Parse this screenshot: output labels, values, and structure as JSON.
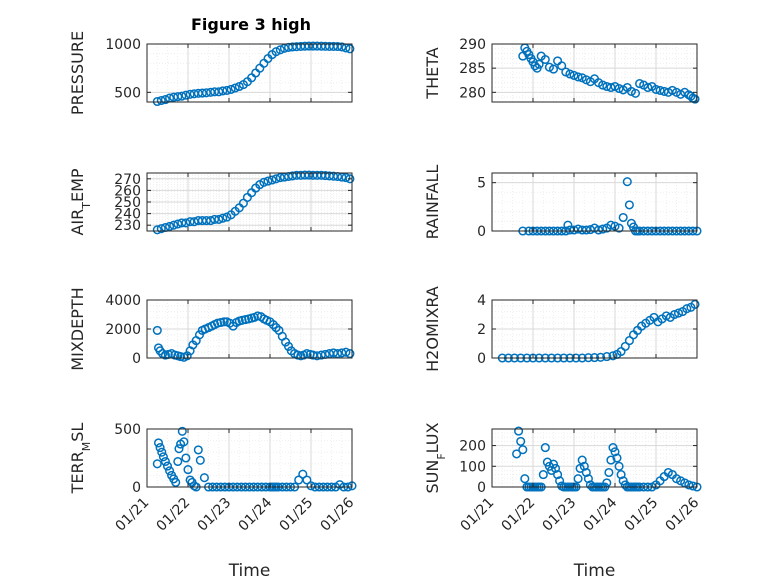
{
  "figure_title": "Figure 3 high",
  "colors": {
    "marker": "#0072BD",
    "axis": "#262626",
    "grid_major": "#d9d9d9",
    "grid_minor": "#ececec"
  },
  "chart_data": [
    {
      "type": "scatter",
      "title": "Figure 3 high",
      "ylabel": "PRESSURE",
      "xlabel": "",
      "xlim": [
        0,
        5
      ],
      "ylim": [
        400,
        1000
      ],
      "yticks": [
        500,
        1000
      ],
      "xticks": [
        "01/21",
        "01/22",
        "01/23",
        "01/24",
        "01/25",
        "01/26"
      ],
      "grid": true,
      "minor_grid": true,
      "x": [
        0.25,
        0.35,
        0.45,
        0.55,
        0.65,
        0.75,
        0.85,
        0.95,
        1.05,
        1.15,
        1.25,
        1.35,
        1.45,
        1.55,
        1.65,
        1.75,
        1.85,
        1.95,
        2.05,
        2.15,
        2.25,
        2.35,
        2.45,
        2.55,
        2.65,
        2.75,
        2.85,
        2.95,
        3.05,
        3.15,
        3.25,
        3.35,
        3.45,
        3.55,
        3.65,
        3.75,
        3.85,
        3.95,
        4.05,
        4.15,
        4.25,
        4.35,
        4.45,
        4.55,
        4.65,
        4.75,
        4.85,
        4.95
      ],
      "y": [
        405,
        415,
        425,
        440,
        450,
        455,
        460,
        470,
        480,
        485,
        490,
        492,
        495,
        500,
        505,
        505,
        515,
        520,
        530,
        545,
        560,
        580,
        610,
        650,
        700,
        750,
        800,
        850,
        890,
        920,
        940,
        955,
        965,
        970,
        972,
        975,
        977,
        978,
        978,
        978,
        977,
        976,
        975,
        975,
        974,
        970,
        960,
        950
      ]
    },
    {
      "type": "scatter",
      "ylabel": "THETA",
      "xlabel": "",
      "xlim": [
        0,
        5
      ],
      "ylim": [
        278,
        290
      ],
      "yticks": [
        280,
        285,
        290
      ],
      "xticks": [
        "01/21",
        "01/22",
        "01/23",
        "01/24",
        "01/25",
        "01/26"
      ],
      "grid": true,
      "minor_grid": true,
      "x": [
        0.75,
        0.8,
        0.85,
        0.9,
        0.95,
        1.0,
        1.05,
        1.1,
        1.15,
        1.2,
        1.3,
        1.4,
        1.5,
        1.6,
        1.7,
        1.8,
        1.9,
        2.0,
        2.1,
        2.2,
        2.3,
        2.4,
        2.5,
        2.6,
        2.7,
        2.8,
        2.9,
        3.0,
        3.1,
        3.2,
        3.3,
        3.4,
        3.5,
        3.6,
        3.7,
        3.8,
        3.9,
        4.0,
        4.1,
        4.2,
        4.3,
        4.4,
        4.5,
        4.6,
        4.7,
        4.8,
        4.85,
        4.9,
        4.95
      ],
      "y": [
        287.5,
        289.2,
        288.5,
        287.8,
        287.0,
        286.3,
        285.5,
        285.0,
        285.8,
        287.5,
        286.8,
        285.2,
        284.8,
        286.5,
        285.5,
        284.2,
        283.8,
        283.5,
        283.2,
        283.0,
        282.6,
        282.2,
        282.8,
        282.0,
        281.5,
        281.2,
        281.0,
        281.2,
        280.8,
        280.5,
        281.0,
        280.2,
        279.8,
        281.8,
        281.5,
        281.0,
        281.2,
        280.6,
        280.4,
        280.2,
        280.0,
        280.4,
        280.0,
        279.6,
        280.0,
        279.5,
        279.2,
        278.8,
        278.6
      ]
    },
    {
      "type": "scatter",
      "ylabel": "AIR_TEMP",
      "ylabel_display": {
        "base": "AIR",
        "sub": "T",
        "rest": "EMP"
      },
      "xlabel": "",
      "xlim": [
        0,
        5
      ],
      "ylim": [
        225,
        275
      ],
      "yticks": [
        230,
        240,
        250,
        260,
        270
      ],
      "xticks": [
        "01/21",
        "01/22",
        "01/23",
        "01/24",
        "01/25",
        "01/26"
      ],
      "grid": true,
      "minor_grid": true,
      "x": [
        0.25,
        0.35,
        0.45,
        0.55,
        0.65,
        0.75,
        0.85,
        0.95,
        1.05,
        1.15,
        1.25,
        1.35,
        1.45,
        1.55,
        1.65,
        1.75,
        1.85,
        1.95,
        2.05,
        2.15,
        2.25,
        2.35,
        2.45,
        2.55,
        2.65,
        2.75,
        2.85,
        2.95,
        3.05,
        3.15,
        3.25,
        3.35,
        3.45,
        3.55,
        3.65,
        3.75,
        3.85,
        3.95,
        4.05,
        4.15,
        4.25,
        4.35,
        4.45,
        4.55,
        4.65,
        4.75,
        4.85,
        4.95
      ],
      "y": [
        226,
        227,
        228,
        229,
        230,
        231,
        232,
        232,
        233,
        233,
        234,
        234,
        234,
        234,
        235,
        235,
        236,
        237,
        239,
        242,
        245,
        249,
        254,
        258,
        262,
        265,
        267,
        268,
        269,
        270,
        271,
        271.5,
        272,
        272.5,
        273,
        273,
        273.2,
        273.2,
        273,
        273,
        273,
        272.8,
        272.5,
        272.2,
        272,
        271.5,
        271,
        270
      ]
    },
    {
      "type": "scatter",
      "ylabel": "RAINFALL",
      "xlabel": "",
      "xlim": [
        0,
        5
      ],
      "ylim": [
        0,
        6
      ],
      "yticks": [
        0,
        5
      ],
      "xticks": [
        "01/21",
        "01/22",
        "01/23",
        "01/24",
        "01/25",
        "01/26"
      ],
      "grid": true,
      "minor_grid": true,
      "x": [
        0.75,
        0.9,
        1.0,
        1.1,
        1.2,
        1.3,
        1.4,
        1.5,
        1.6,
        1.7,
        1.8,
        1.85,
        1.9,
        2.0,
        2.1,
        2.2,
        2.3,
        2.4,
        2.5,
        2.6,
        2.7,
        2.8,
        2.9,
        3.0,
        3.1,
        3.2,
        3.3,
        3.35,
        3.4,
        3.45,
        3.5,
        3.55,
        3.6,
        3.7,
        3.8,
        3.9,
        4.0,
        4.1,
        4.2,
        4.3,
        4.4,
        4.5,
        4.6,
        4.7,
        4.8,
        4.9,
        5.0
      ],
      "y": [
        0,
        0,
        0,
        0,
        0,
        0,
        0,
        0,
        0,
        0,
        0,
        0.6,
        0.1,
        0.1,
        0.2,
        0.1,
        0.1,
        0.15,
        0.3,
        0.1,
        0.2,
        0.3,
        0.6,
        0.5,
        0.3,
        1.4,
        5.1,
        2.7,
        0.8,
        0.4,
        0,
        0,
        0,
        0,
        0,
        0,
        0,
        0,
        0,
        0,
        0,
        0,
        0,
        0,
        0,
        0,
        0
      ]
    },
    {
      "type": "scatter",
      "ylabel": "MIXDEPTH",
      "xlabel": "",
      "xlim": [
        0,
        5
      ],
      "ylim": [
        0,
        4000
      ],
      "yticks": [
        0,
        2000,
        4000
      ],
      "xticks": [
        "01/21",
        "01/22",
        "01/23",
        "01/24",
        "01/25",
        "01/26"
      ],
      "grid": true,
      "minor_grid": true,
      "x": [
        0.25,
        0.28,
        0.32,
        0.38,
        0.45,
        0.52,
        0.6,
        0.68,
        0.75,
        0.82,
        0.9,
        0.98,
        1.05,
        1.12,
        1.2,
        1.28,
        1.35,
        1.42,
        1.5,
        1.58,
        1.65,
        1.72,
        1.8,
        1.88,
        1.95,
        2.02,
        2.1,
        2.18,
        2.25,
        2.32,
        2.4,
        2.48,
        2.55,
        2.62,
        2.7,
        2.78,
        2.85,
        2.92,
        3.0,
        3.08,
        3.15,
        3.22,
        3.3,
        3.38,
        3.45,
        3.52,
        3.6,
        3.68,
        3.75,
        3.82,
        3.9,
        3.98,
        4.05,
        4.15,
        4.25,
        4.35,
        4.45,
        4.55,
        4.65,
        4.75,
        4.85,
        4.95
      ],
      "y": [
        1900,
        700,
        500,
        300,
        200,
        250,
        300,
        200,
        150,
        100,
        50,
        150,
        500,
        900,
        1200,
        1600,
        1900,
        2000,
        2100,
        2200,
        2300,
        2400,
        2450,
        2500,
        2500,
        2400,
        2200,
        2450,
        2550,
        2600,
        2650,
        2700,
        2750,
        2800,
        2900,
        2850,
        2700,
        2600,
        2500,
        2300,
        2100,
        1900,
        1500,
        1100,
        800,
        500,
        300,
        200,
        150,
        200,
        300,
        250,
        200,
        150,
        200,
        250,
        300,
        350,
        300,
        350,
        400,
        300
      ]
    },
    {
      "type": "scatter",
      "ylabel": "H2OMIXRA",
      "xlabel": "",
      "xlim": [
        0,
        5
      ],
      "ylim": [
        0,
        4
      ],
      "yticks": [
        0,
        2,
        4
      ],
      "xticks": [
        "01/21",
        "01/22",
        "01/23",
        "01/24",
        "01/25",
        "01/26"
      ],
      "grid": true,
      "minor_grid": true,
      "x": [
        0.25,
        0.4,
        0.55,
        0.7,
        0.85,
        1.0,
        1.15,
        1.3,
        1.45,
        1.6,
        1.75,
        1.9,
        2.05,
        2.2,
        2.35,
        2.5,
        2.65,
        2.8,
        2.95,
        3.05,
        3.15,
        3.25,
        3.35,
        3.45,
        3.55,
        3.65,
        3.75,
        3.85,
        3.95,
        4.05,
        4.15,
        4.25,
        4.35,
        4.45,
        4.55,
        4.65,
        4.75,
        4.85,
        4.95
      ],
      "y": [
        0,
        0,
        0,
        0,
        0,
        0,
        0,
        0,
        0,
        0,
        0,
        0,
        0,
        0,
        0.02,
        0.03,
        0.05,
        0.1,
        0.15,
        0.25,
        0.45,
        0.8,
        1.2,
        1.6,
        1.9,
        2.2,
        2.4,
        2.6,
        2.8,
        2.5,
        2.7,
        2.9,
        2.8,
        3.0,
        3.1,
        3.2,
        3.4,
        3.5,
        3.7
      ]
    },
    {
      "type": "scatter",
      "ylabel": "TERR_MSL",
      "ylabel_display": {
        "base": "TERR",
        "sub": "M",
        "rest": "SL"
      },
      "xlabel": "Time",
      "xlim": [
        0,
        5
      ],
      "ylim": [
        0,
        500
      ],
      "yticks": [
        0,
        500
      ],
      "xticks": [
        "01/21",
        "01/22",
        "01/23",
        "01/24",
        "01/25",
        "01/26"
      ],
      "grid": true,
      "minor_grid": true,
      "x": [
        0.25,
        0.28,
        0.32,
        0.36,
        0.4,
        0.45,
        0.5,
        0.55,
        0.6,
        0.65,
        0.7,
        0.75,
        0.78,
        0.82,
        0.86,
        0.9,
        0.95,
        1.0,
        1.05,
        1.1,
        1.15,
        1.2,
        1.25,
        1.3,
        1.4,
        1.5,
        1.6,
        1.7,
        1.8,
        1.9,
        2.0,
        2.1,
        2.2,
        2.3,
        2.4,
        2.5,
        2.6,
        2.7,
        2.8,
        2.9,
        3.0,
        3.05,
        3.1,
        3.15,
        3.2,
        3.3,
        3.4,
        3.5,
        3.6,
        3.7,
        3.8,
        3.9,
        4.0,
        4.1,
        4.2,
        4.3,
        4.4,
        4.5,
        4.6,
        4.7,
        4.8,
        4.9,
        5.0
      ],
      "y": [
        200,
        380,
        340,
        300,
        260,
        220,
        180,
        140,
        100,
        70,
        40,
        220,
        330,
        370,
        480,
        390,
        250,
        150,
        60,
        40,
        10,
        0,
        320,
        230,
        80,
        0,
        0,
        0,
        0,
        0,
        0,
        0,
        0,
        0,
        0,
        0,
        0,
        0,
        0,
        0,
        0,
        0,
        0,
        0,
        0,
        0,
        0,
        0,
        0,
        60,
        110,
        60,
        10,
        0,
        0,
        0,
        0,
        0,
        0,
        20,
        0,
        0,
        10
      ]
    },
    {
      "type": "scatter",
      "ylabel": "SUN_FLUX",
      "ylabel_display": {
        "base": "SUN",
        "sub": "F",
        "rest": "LUX"
      },
      "xlabel": "Time",
      "xlim": [
        0,
        5
      ],
      "ylim": [
        0,
        280
      ],
      "yticks": [
        0,
        100,
        200
      ],
      "xticks": [
        "01/21",
        "01/22",
        "01/23",
        "01/24",
        "01/25",
        "01/26"
      ],
      "grid": true,
      "minor_grid": true,
      "x": [
        0.6,
        0.65,
        0.7,
        0.75,
        0.8,
        0.85,
        0.9,
        0.95,
        1.0,
        1.05,
        1.1,
        1.15,
        1.2,
        1.25,
        1.3,
        1.35,
        1.4,
        1.45,
        1.5,
        1.55,
        1.6,
        1.65,
        1.7,
        1.75,
        1.8,
        1.85,
        1.9,
        1.95,
        2.0,
        2.05,
        2.1,
        2.15,
        2.2,
        2.25,
        2.3,
        2.35,
        2.4,
        2.45,
        2.5,
        2.55,
        2.6,
        2.65,
        2.7,
        2.75,
        2.8,
        2.85,
        2.9,
        2.95,
        3.0,
        3.05,
        3.1,
        3.15,
        3.2,
        3.25,
        3.3,
        3.35,
        3.4,
        3.45,
        3.5,
        3.55,
        3.6,
        3.7,
        3.8,
        3.9,
        4.0,
        4.1,
        4.2,
        4.3,
        4.4,
        4.5,
        4.6,
        4.7,
        4.8,
        4.9,
        5.0
      ],
      "y": [
        160,
        270,
        220,
        180,
        40,
        0,
        0,
        0,
        0,
        0,
        0,
        0,
        0,
        60,
        190,
        120,
        100,
        80,
        110,
        90,
        60,
        30,
        5,
        0,
        0,
        0,
        0,
        0,
        0,
        0,
        40,
        90,
        130,
        100,
        70,
        40,
        10,
        0,
        0,
        0,
        0,
        0,
        0,
        0,
        20,
        70,
        130,
        190,
        170,
        140,
        100,
        60,
        30,
        10,
        0,
        0,
        0,
        0,
        0,
        0,
        0,
        0,
        0,
        0,
        10,
        30,
        50,
        70,
        60,
        40,
        30,
        20,
        10,
        5,
        0
      ]
    }
  ]
}
